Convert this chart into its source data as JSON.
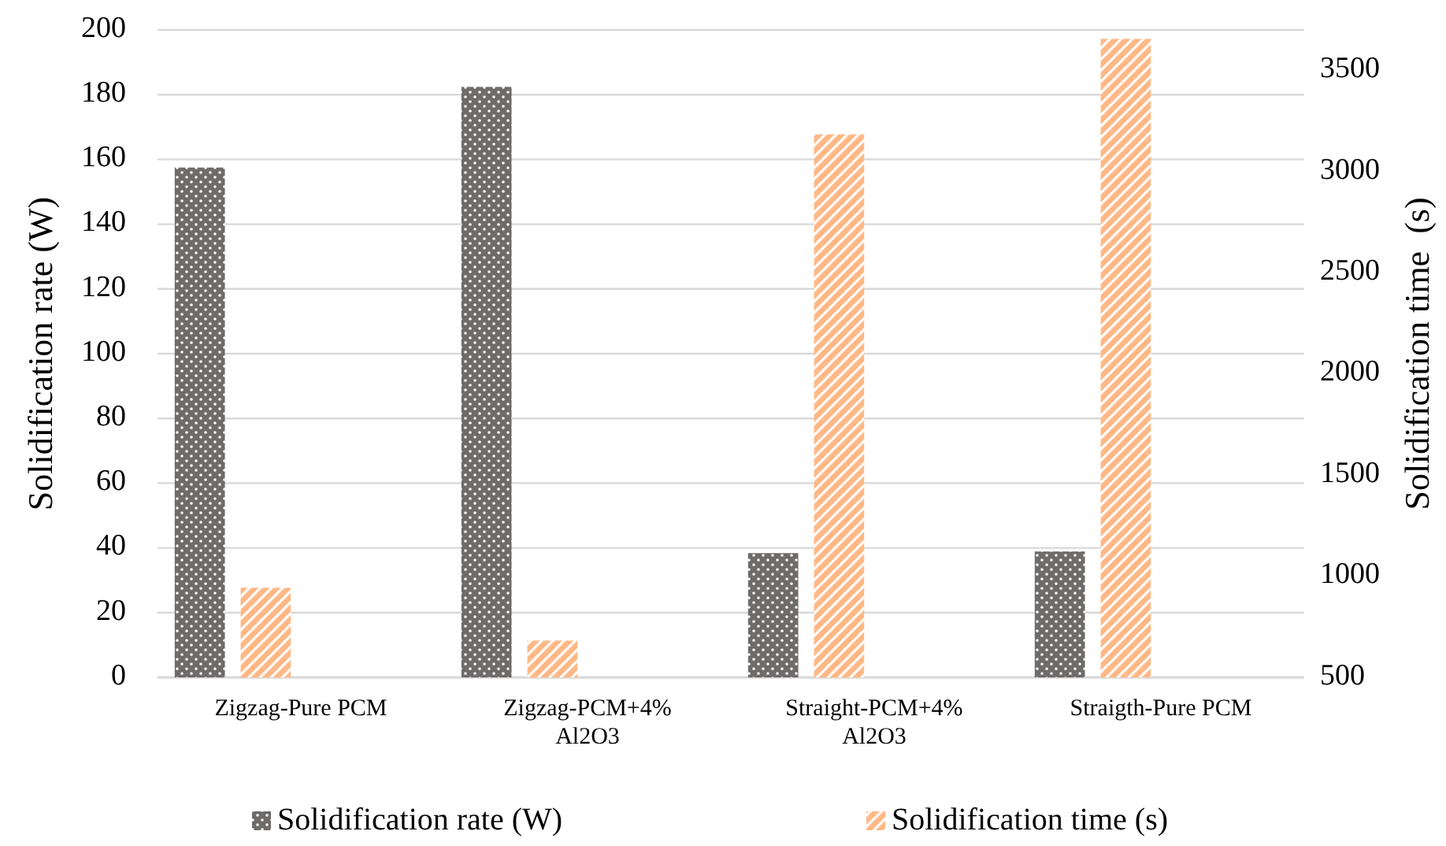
{
  "chart_data": {
    "type": "bar",
    "ylabel": "Solidification rate (W)",
    "y2label": "Solidification time  (s)",
    "categories": [
      "Zigzag-Pure PCM",
      "Zigzag-PCM+4% Al2O3",
      "Straight-PCM+4% Al2O3",
      "Straigth-Pure PCM"
    ],
    "series": [
      {
        "name": "Solidification rate (W)",
        "color": "#6e6b6b",
        "values": [
          157.5,
          182.4,
          38.4,
          38.9
        ]
      },
      {
        "name": "Solidification time (s)",
        "color": "#ffb885",
        "axis": "y2",
        "values": [
          943,
          682,
          3184,
          3656
        ]
      }
    ],
    "ylim": [
      0,
      200
    ],
    "yticks": [
      0,
      20,
      40,
      60,
      80,
      100,
      120,
      140,
      160,
      180,
      200
    ],
    "y2lim": [
      500,
      3700
    ],
    "y2ticks": [
      500,
      1000,
      1500,
      2000,
      2500,
      3000,
      3500
    ],
    "grid": true,
    "legend": "bottom"
  }
}
